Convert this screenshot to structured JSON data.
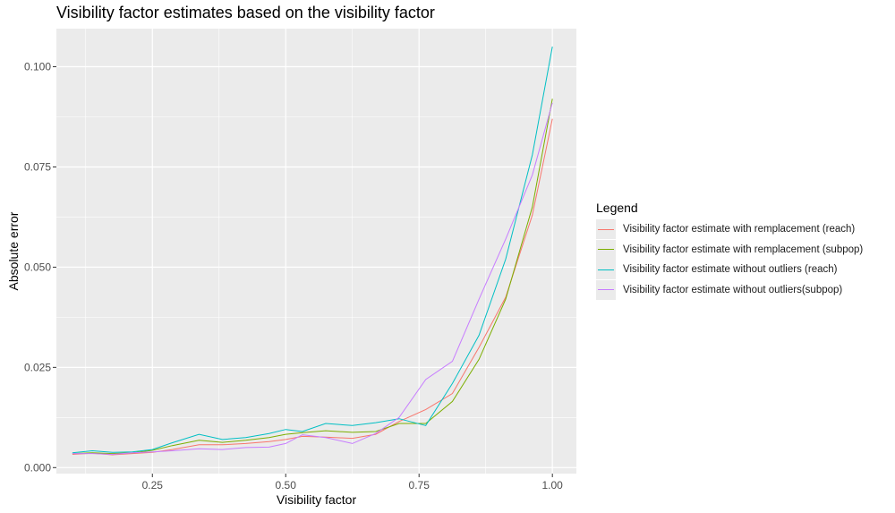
{
  "chart_data": {
    "type": "line",
    "title": "Visibility factor estimates based on the visibility factor",
    "xlabel": "Visibility factor",
    "ylabel": "Absolute error",
    "xlim": [
      0.07,
      1.045
    ],
    "ylim": [
      -0.0015,
      0.1095
    ],
    "x_ticks": [
      0.25,
      0.5,
      0.75,
      1.0
    ],
    "x_tick_labels": [
      "0.25",
      "0.50",
      "0.75",
      "1.00"
    ],
    "y_ticks": [
      0.0,
      0.025,
      0.05,
      0.075,
      0.1
    ],
    "y_tick_labels": [
      "0.000",
      "0.025",
      "0.050",
      "0.075",
      "0.100"
    ],
    "grid": true,
    "background": "#ebebeb",
    "legend": {
      "title": "Legend",
      "position": "right"
    },
    "x": [
      0.1,
      0.1375,
      0.175,
      0.2125,
      0.25,
      0.2875,
      0.3375,
      0.3813,
      0.425,
      0.4688,
      0.5,
      0.5313,
      0.575,
      0.625,
      0.6688,
      0.7125,
      0.7625,
      0.8125,
      0.8625,
      0.9125,
      0.9625,
      1.0
    ],
    "series": [
      {
        "name": "Visibility factor estimate with remplacement (reach)",
        "color": "#F8766D",
        "values": [
          0.0033,
          0.0036,
          0.0032,
          0.0035,
          0.0038,
          0.0045,
          0.0057,
          0.0057,
          0.006,
          0.0065,
          0.007,
          0.0078,
          0.0076,
          0.0073,
          0.0083,
          0.0115,
          0.0145,
          0.0185,
          0.03,
          0.0425,
          0.063,
          0.087
        ]
      },
      {
        "name": "Visibility factor estimate with remplacement (subpop)",
        "color": "#7CAE00",
        "values": [
          0.0035,
          0.0037,
          0.0035,
          0.0037,
          0.0043,
          0.0055,
          0.0068,
          0.0063,
          0.0068,
          0.0075,
          0.0083,
          0.0087,
          0.0092,
          0.0088,
          0.009,
          0.011,
          0.011,
          0.0165,
          0.027,
          0.042,
          0.065,
          0.092
        ]
      },
      {
        "name": "Visibility factor estimate without outliers (reach)",
        "color": "#00BFC4",
        "values": [
          0.0037,
          0.0042,
          0.0038,
          0.0039,
          0.0045,
          0.0062,
          0.0083,
          0.007,
          0.0075,
          0.0085,
          0.0095,
          0.009,
          0.011,
          0.0105,
          0.0112,
          0.0122,
          0.0105,
          0.021,
          0.033,
          0.052,
          0.078,
          0.105
        ]
      },
      {
        "name": "Visibility factor estimate without outliers(subpop)",
        "color": "#C77CFF",
        "values": [
          0.0035,
          0.0035,
          0.0033,
          0.0037,
          0.0039,
          0.0042,
          0.0047,
          0.0045,
          0.005,
          0.0051,
          0.006,
          0.0082,
          0.0075,
          0.006,
          0.0085,
          0.0125,
          0.022,
          0.0265,
          0.042,
          0.057,
          0.073,
          0.091
        ]
      }
    ]
  }
}
